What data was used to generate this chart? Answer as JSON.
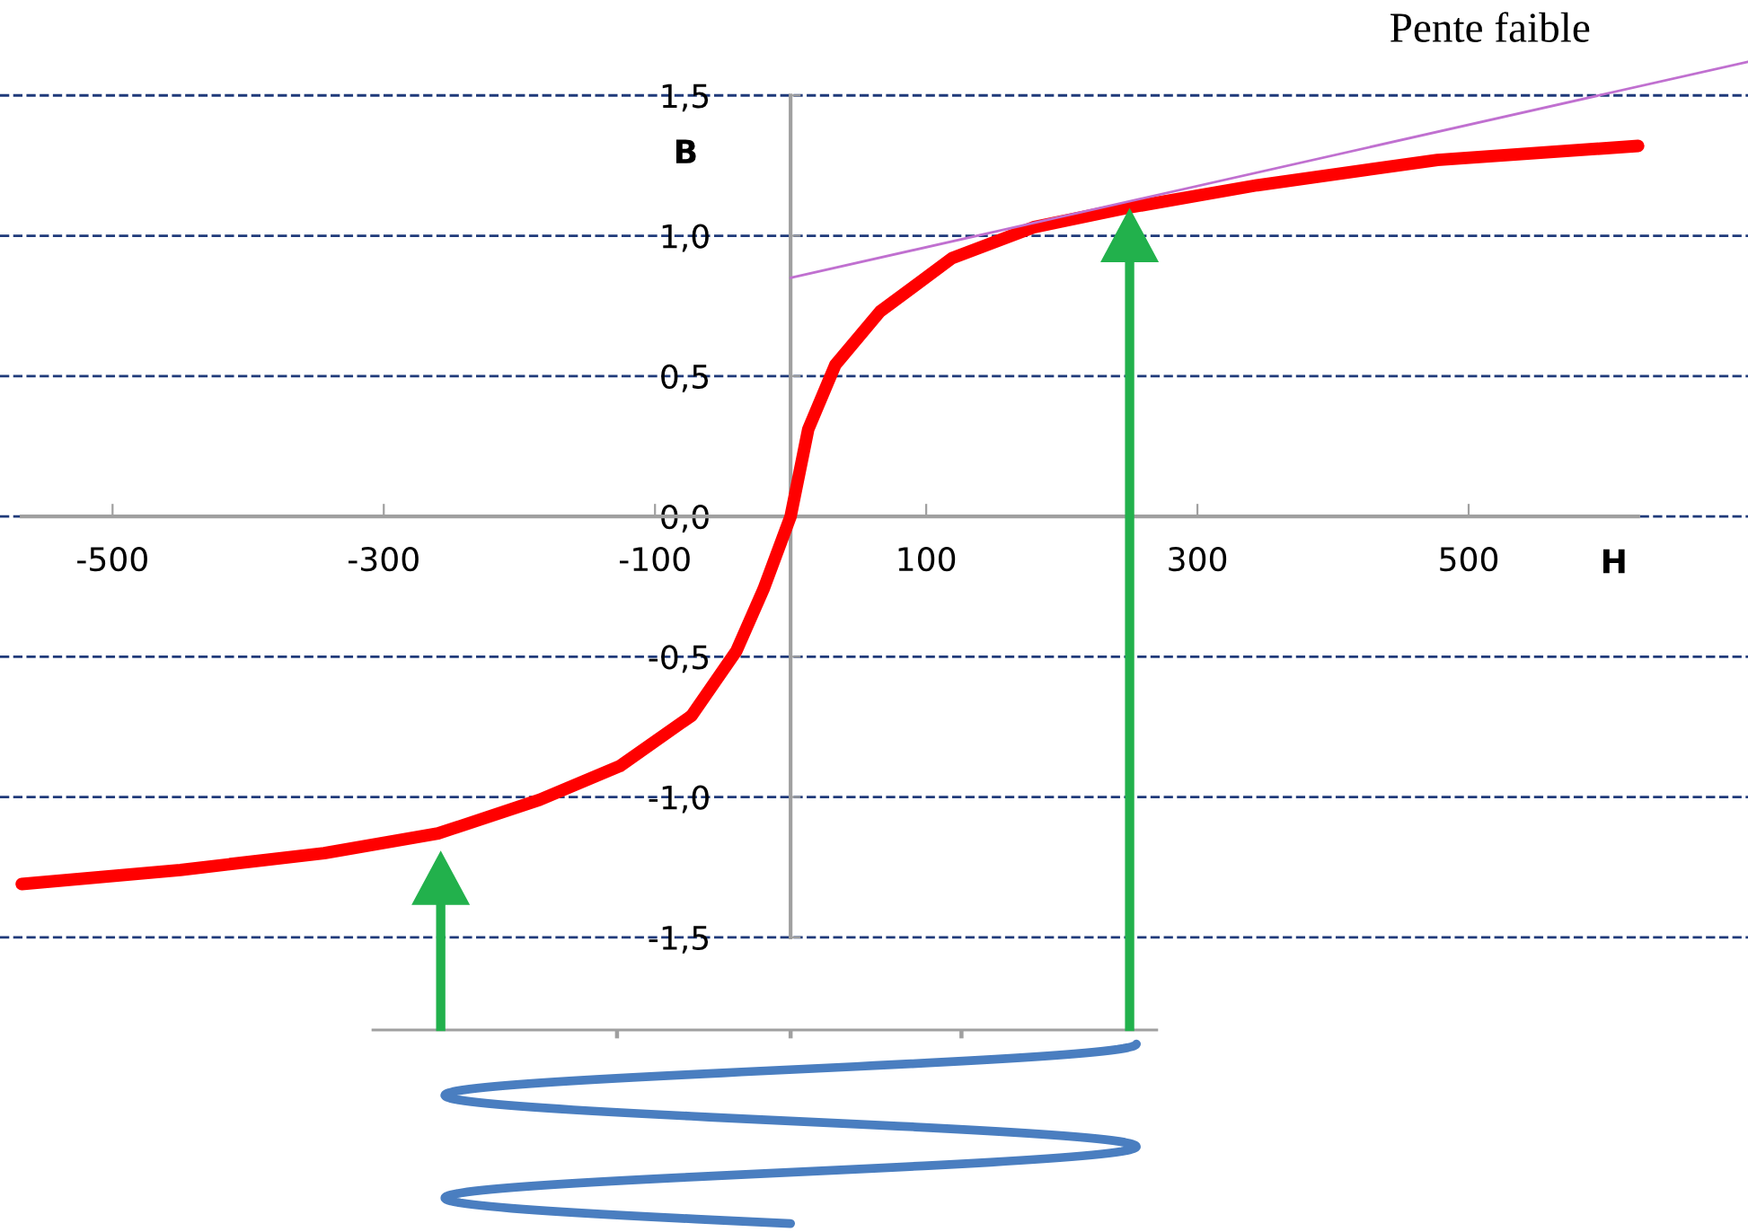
{
  "chart_data": {
    "type": "line",
    "xlabel": "H",
    "ylabel": "B",
    "xlim": [
      -583,
      706
    ],
    "ylim": [
      -2.55,
      1.84
    ],
    "xticks": [
      -500,
      -300,
      -100,
      100,
      300,
      500
    ],
    "yticks": [
      {
        "value": 1.5,
        "label": "1,5"
      },
      {
        "value": 1.0,
        "label": "1,0"
      },
      {
        "value": 0.5,
        "label": "0,5"
      },
      {
        "value": 0.0,
        "label": "0,0"
      },
      {
        "value": -0.5,
        "label": "-0,5"
      },
      {
        "value": -1.0,
        "label": "-1,0"
      },
      {
        "value": -1.5,
        "label": "-1,5"
      }
    ],
    "grid": "y",
    "legend": false,
    "marker": "none",
    "line_style": "solid",
    "series": [
      {
        "color": "#ff0000",
        "x": [
          -567,
          -450,
          -344,
          -260,
          -185,
          -126,
          -73,
          -40,
          -20,
          0,
          13,
          33,
          66,
          119,
          179,
          249,
          344,
          477,
          625
        ],
        "values": [
          -1.31,
          -1.26,
          -1.2,
          -1.13,
          -1.01,
          -0.89,
          -0.71,
          -0.48,
          -0.26,
          0.0,
          0.31,
          0.54,
          0.73,
          0.92,
          1.03,
          1.1,
          1.18,
          1.27,
          1.32
        ]
      },
      {
        "color": "#c070d0",
        "x": [
          0,
          706
        ],
        "values": [
          0.85,
          1.62
        ]
      }
    ],
    "annotations": [
      "Pente faible"
    ]
  }
}
